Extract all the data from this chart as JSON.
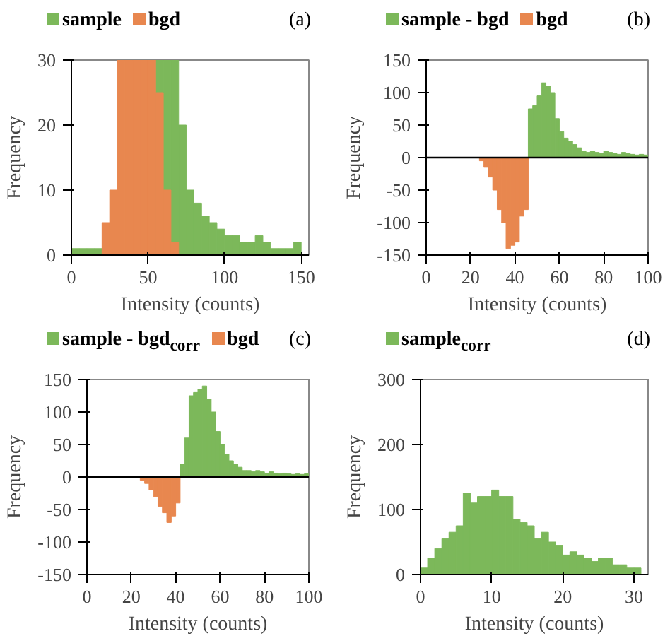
{
  "chart_data": [
    {
      "type": "histogram",
      "title": "(a)",
      "xlabel": "Intensity (counts)",
      "ylabel": "Frequency",
      "bins": [
        0,
        5,
        10,
        15,
        20,
        25,
        30,
        35,
        40,
        45,
        50,
        55,
        60,
        65,
        70,
        75,
        80,
        85,
        90,
        95,
        100,
        105,
        110,
        115,
        120,
        125,
        130,
        135,
        140,
        145,
        150
      ],
      "xlim": [
        0,
        155
      ],
      "xticks": [
        0,
        50,
        100,
        150
      ],
      "ylim": [
        0,
        30
      ],
      "yticks": [
        0,
        10,
        20,
        30
      ],
      "legend": "top",
      "grid": false,
      "series": [
        {
          "name": "sample",
          "color": "#7cb85a",
          "values": [
            1,
            1,
            1,
            1,
            null,
            null,
            null,
            null,
            null,
            null,
            null,
            30,
            30,
            30,
            20,
            10,
            8,
            6,
            5,
            4,
            3,
            3,
            2,
            2,
            3,
            2,
            1,
            1,
            1,
            2
          ]
        },
        {
          "name": "bgd",
          "color": "#e8874f",
          "values": [
            0,
            0,
            0,
            0,
            5,
            10,
            30,
            30,
            30,
            30,
            30,
            25,
            10,
            2,
            0,
            0,
            0,
            0,
            0,
            0,
            0,
            0,
            0,
            0,
            0,
            0,
            0,
            0,
            0,
            0
          ]
        }
      ]
    },
    {
      "type": "histogram",
      "title": "(b)",
      "xlabel": "Intensity (counts)",
      "ylabel": "Frequency",
      "bins": [
        0,
        2,
        4,
        6,
        8,
        10,
        12,
        14,
        16,
        18,
        20,
        22,
        24,
        26,
        28,
        30,
        32,
        34,
        36,
        38,
        40,
        42,
        44,
        46,
        48,
        50,
        52,
        54,
        56,
        58,
        60,
        62,
        64,
        66,
        68,
        70,
        72,
        74,
        76,
        78,
        80,
        82,
        84,
        86,
        88,
        90,
        92,
        94,
        96,
        98,
        100
      ],
      "xlim": [
        0,
        100
      ],
      "xticks": [
        0,
        20,
        40,
        60,
        80,
        100
      ],
      "ylim": [
        -150,
        150
      ],
      "yticks": [
        -150,
        -100,
        -50,
        0,
        50,
        100,
        150
      ],
      "legend": "top",
      "grid": false,
      "ref_lines": [
        {
          "axis": "y",
          "value": 0
        }
      ],
      "series": [
        {
          "name": "sample - bgd",
          "color": "#7cb85a",
          "values": [
            null,
            null,
            null,
            null,
            null,
            null,
            null,
            null,
            null,
            null,
            null,
            null,
            null,
            null,
            null,
            null,
            null,
            null,
            null,
            null,
            null,
            null,
            null,
            75,
            80,
            95,
            115,
            110,
            100,
            60,
            40,
            30,
            25,
            20,
            15,
            10,
            8,
            10,
            8,
            6,
            10,
            8,
            6,
            5,
            8,
            6,
            5,
            4,
            5,
            4
          ]
        },
        {
          "name": "bgd",
          "color": "#e8874f",
          "values": [
            null,
            null,
            null,
            null,
            null,
            null,
            null,
            null,
            null,
            null,
            null,
            null,
            -5,
            -15,
            -30,
            -50,
            -80,
            -100,
            -140,
            -135,
            -130,
            -90,
            -80,
            null,
            null,
            null,
            null,
            null,
            null,
            null,
            null,
            null,
            null,
            null,
            null,
            null,
            null,
            null,
            null,
            null,
            null,
            null,
            null,
            null,
            null,
            null,
            null,
            null,
            null,
            null
          ]
        }
      ]
    },
    {
      "type": "histogram",
      "title": "(c)",
      "xlabel": "Intensity (counts)",
      "ylabel": "Frequency",
      "bins": [
        0,
        2,
        4,
        6,
        8,
        10,
        12,
        14,
        16,
        18,
        20,
        22,
        24,
        26,
        28,
        30,
        32,
        34,
        36,
        38,
        40,
        42,
        44,
        46,
        48,
        50,
        52,
        54,
        56,
        58,
        60,
        62,
        64,
        66,
        68,
        70,
        72,
        74,
        76,
        78,
        80,
        82,
        84,
        86,
        88,
        90,
        92,
        94,
        96,
        98,
        100
      ],
      "xlim": [
        0,
        100
      ],
      "xticks": [
        0,
        20,
        40,
        60,
        80,
        100
      ],
      "ylim": [
        -150,
        150
      ],
      "yticks": [
        -150,
        -100,
        -50,
        0,
        50,
        100,
        150
      ],
      "legend": "top",
      "grid": false,
      "ref_lines": [
        {
          "axis": "y",
          "value": 0
        }
      ],
      "series": [
        {
          "name": "sample - bgd$_{corr}$",
          "color": "#7cb85a",
          "values": [
            null,
            null,
            null,
            null,
            null,
            null,
            null,
            null,
            null,
            null,
            null,
            null,
            null,
            null,
            null,
            null,
            null,
            null,
            null,
            null,
            null,
            20,
            60,
            125,
            130,
            135,
            140,
            120,
            100,
            70,
            50,
            35,
            25,
            20,
            15,
            10,
            10,
            8,
            10,
            8,
            6,
            8,
            6,
            5,
            6,
            5,
            4,
            5,
            4,
            5
          ]
        },
        {
          "name": "bgd",
          "color": "#e8874f",
          "values": [
            null,
            null,
            null,
            null,
            null,
            null,
            null,
            null,
            null,
            null,
            null,
            null,
            -5,
            -10,
            -20,
            -30,
            -45,
            -55,
            -70,
            -60,
            -40,
            null,
            null,
            null,
            null,
            null,
            null,
            null,
            null,
            null,
            null,
            null,
            null,
            null,
            null,
            null,
            null,
            null,
            null,
            null,
            null,
            null,
            null,
            null,
            null,
            null,
            null,
            null,
            null,
            null
          ]
        }
      ]
    },
    {
      "type": "histogram",
      "title": "(d)",
      "xlabel": "Intensity (counts)",
      "ylabel": "Frequency",
      "bins": [
        0,
        1,
        2,
        3,
        4,
        5,
        6,
        7,
        8,
        9,
        10,
        11,
        12,
        13,
        14,
        15,
        16,
        17,
        18,
        19,
        20,
        21,
        22,
        23,
        24,
        25,
        26,
        27,
        28,
        29,
        30,
        31
      ],
      "xlim": [
        0,
        32
      ],
      "xticks": [
        0,
        10,
        20,
        30
      ],
      "ylim": [
        0,
        300
      ],
      "yticks": [
        0,
        100,
        200,
        300
      ],
      "legend": "top",
      "grid": false,
      "series": [
        {
          "name": "sample$_{corr}$",
          "color": "#7cb85a",
          "values": [
            10,
            25,
            40,
            55,
            65,
            75,
            125,
            110,
            120,
            120,
            130,
            120,
            120,
            85,
            80,
            75,
            55,
            65,
            50,
            45,
            30,
            35,
            30,
            25,
            20,
            25,
            25,
            15,
            15,
            10,
            10
          ]
        }
      ]
    }
  ]
}
